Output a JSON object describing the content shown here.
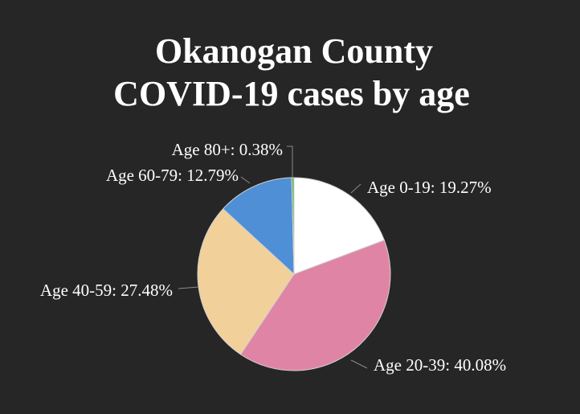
{
  "chart_data": {
    "type": "pie",
    "title_lines": [
      "Okanogan County",
      "COVID-19 cases by age"
    ],
    "slices": [
      {
        "label": "Age 0-19",
        "value": 19.27,
        "display": "Age 0-19: 19.27%",
        "color": "#ffffff"
      },
      {
        "label": "Age 20-39",
        "value": 40.08,
        "display": "Age 20-39: 40.08%",
        "color": "#e084a6"
      },
      {
        "label": "Age 40-59",
        "value": 27.48,
        "display": "Age 40-59: 27.48%",
        "color": "#f2d09a"
      },
      {
        "label": "Age 60-79",
        "value": 12.79,
        "display": "Age 60-79: 12.79%",
        "color": "#4f8fd6"
      },
      {
        "label": "Age 80+",
        "value": 0.38,
        "display": "Age 80+: 0.38%",
        "color": "#5cb85c"
      }
    ],
    "background_color": "#262626",
    "text_color": "#ffffff",
    "legend": "none",
    "start_angle_deg": 0,
    "direction": "clockwise"
  }
}
